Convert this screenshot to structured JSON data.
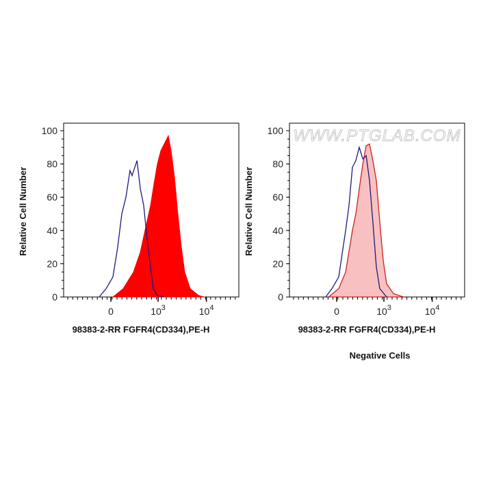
{
  "watermark": "WWW.PTGLAB.COM",
  "caption": "Negative Cells",
  "colors": {
    "control": "#1a1a7a",
    "positive_fill": "#ff0000",
    "negative_fill": "#f8c0c0",
    "negative_line": "#cc1f1f"
  },
  "chart_data": [
    {
      "type": "area",
      "xlabel": "98383-2-RR FGFR4(CD334),PE-H",
      "ylabel": "Relative Cell Number",
      "x_scale": "biexponential",
      "ylim": [
        0,
        100
      ],
      "yticks": [
        "0",
        "20",
        "40",
        "60",
        "80",
        "100"
      ],
      "xticks": [
        {
          "value": 0,
          "label": "0"
        },
        {
          "value": 1000,
          "label": "10",
          "exp": "3"
        },
        {
          "value": 10000,
          "label": "10",
          "exp": "4"
        }
      ],
      "series": [
        {
          "style": "filled",
          "color": "#ff0000",
          "x": [
            21,
            133,
            277,
            409,
            522,
            690,
            817,
            967,
            1140,
            1344,
            1636,
            1866,
            2195,
            2580,
            3042,
            3570,
            4640,
            6860,
            8900
          ],
          "y": [
            0,
            5,
            15,
            27,
            40,
            55,
            68,
            80,
            88,
            92,
            97,
            88,
            72,
            50,
            30,
            15,
            5,
            1,
            0
          ]
        },
        {
          "style": "line",
          "color": "#1a1a7a",
          "x": [
            -125,
            -49,
            21,
            71,
            117,
            167,
            224,
            255,
            340,
            409,
            488,
            580,
            690,
            791,
            967,
            1344
          ],
          "y": [
            0,
            5,
            12,
            30,
            50,
            60,
            76,
            73,
            82,
            65,
            55,
            35,
            18,
            5,
            1,
            0
          ]
        }
      ]
    },
    {
      "type": "area",
      "xlabel": "98383-2-RR FGFR4(CD334),PE-H",
      "ylabel": "Relative Cell Number",
      "x_scale": "biexponential",
      "ylim": [
        0,
        100
      ],
      "yticks": [
        "0",
        "20",
        "40",
        "60",
        "80",
        "100"
      ],
      "xticks": [
        {
          "value": 0,
          "label": "0"
        },
        {
          "value": 1000,
          "label": "10",
          "exp": "3"
        },
        {
          "value": 10000,
          "label": "10",
          "exp": "4"
        }
      ],
      "series": [
        {
          "style": "filled-light",
          "color": "#cc1f1f",
          "x": [
            -86,
            21,
            94,
            176,
            224,
            277,
            340,
            409,
            488,
            580,
            690,
            817,
            967,
            1140,
            1585,
            2580
          ],
          "y": [
            0,
            5,
            15,
            40,
            50,
            65,
            80,
            91,
            92,
            82,
            70,
            45,
            22,
            8,
            2,
            0
          ]
        },
        {
          "style": "line",
          "color": "#1a1a7a",
          "x": [
            -117,
            -49,
            21,
            94,
            133,
            176,
            224,
            277,
            340,
            409,
            488,
            580,
            690,
            817,
            1140
          ],
          "y": [
            0,
            5,
            12,
            40,
            55,
            78,
            82,
            90,
            83,
            85,
            70,
            45,
            18,
            5,
            0
          ]
        }
      ]
    }
  ]
}
